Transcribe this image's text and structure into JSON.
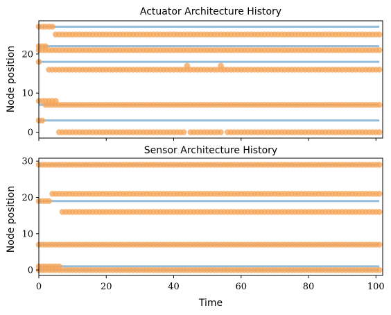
{
  "chart_data": [
    {
      "type": "scatter",
      "title": "Actuator Architecture History",
      "xlabel": "",
      "ylabel": "Node position",
      "xlim": [
        0,
        102
      ],
      "ylim": [
        -1.5,
        28.5
      ],
      "yticks": [
        0,
        10,
        20
      ],
      "xticks": [
        0,
        20,
        40,
        60,
        80,
        100
      ],
      "show_xtick_labels": false,
      "grid": false,
      "colors": {
        "lines": "#8fb8d6",
        "points": "#f5a55a"
      },
      "reference_lines": [
        3,
        7,
        18,
        22,
        27
      ],
      "series": [
        {
          "y": 27,
          "segments": [
            [
              0,
              4
            ]
          ]
        },
        {
          "y": 25,
          "segments": [
            [
              5,
              101
            ]
          ]
        },
        {
          "y": 22,
          "segments": [
            [
              0,
              2
            ]
          ]
        },
        {
          "y": 21,
          "segments": [
            [
              0,
              101
            ]
          ]
        },
        {
          "y": 18,
          "segments": [
            [
              0,
              0
            ]
          ]
        },
        {
          "y": 17,
          "extra_points": [
            44,
            54
          ]
        },
        {
          "y": 16,
          "segments": [
            [
              3,
              101
            ]
          ]
        },
        {
          "y": 8,
          "segments": [
            [
              0,
              5
            ]
          ]
        },
        {
          "y": 7,
          "segments": [
            [
              2,
              101
            ]
          ]
        },
        {
          "y": 3,
          "segments": [
            [
              0,
              1
            ]
          ]
        },
        {
          "y": 0,
          "segments": [
            [
              6,
              43
            ],
            [
              45,
              54
            ],
            [
              56,
              101
            ]
          ]
        }
      ]
    },
    {
      "type": "scatter",
      "title": "Sensor Architecture History",
      "xlabel": "Time",
      "ylabel": "Node position",
      "xlim": [
        0,
        102
      ],
      "ylim": [
        -1.5,
        30.8
      ],
      "yticks": [
        0,
        10,
        20,
        30
      ],
      "xticks": [
        0,
        20,
        40,
        60,
        80,
        100
      ],
      "show_xtick_labels": true,
      "grid": false,
      "colors": {
        "lines": "#8fb8d6",
        "points": "#f5a55a"
      },
      "reference_lines": [
        0,
        1,
        7,
        19,
        29
      ],
      "series": [
        {
          "y": 29,
          "segments": [
            [
              0,
              101
            ]
          ]
        },
        {
          "y": 21,
          "segments": [
            [
              4,
              101
            ]
          ]
        },
        {
          "y": 19,
          "segments": [
            [
              0,
              3
            ]
          ]
        },
        {
          "y": 16,
          "segments": [
            [
              7,
              101
            ]
          ]
        },
        {
          "y": 7,
          "segments": [
            [
              0,
              101
            ]
          ]
        },
        {
          "y": 1,
          "segments": [
            [
              0,
              6
            ]
          ]
        },
        {
          "y": 0,
          "segments": [
            [
              0,
              101
            ]
          ]
        }
      ]
    }
  ]
}
